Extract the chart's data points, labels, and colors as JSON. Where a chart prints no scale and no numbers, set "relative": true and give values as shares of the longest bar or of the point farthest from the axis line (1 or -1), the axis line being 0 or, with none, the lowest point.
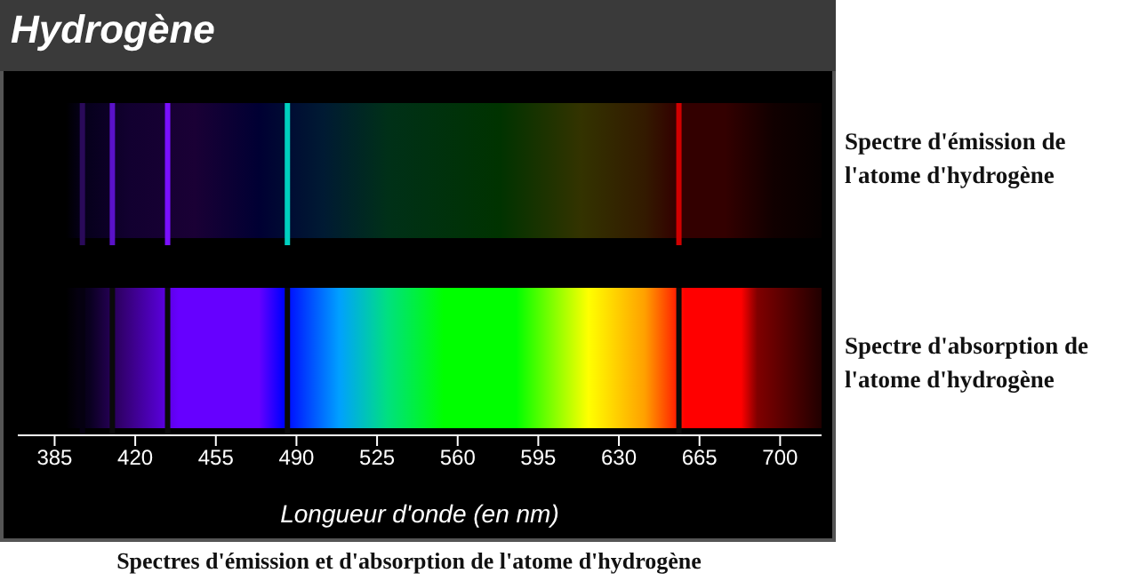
{
  "chart_data": [
    {
      "type": "bar",
      "title": "Hydrogène",
      "ylabel": "Spectre d'émission de l'atome d'hydrogène",
      "relative": true,
      "xlim": [
        369,
        718
      ],
      "xticks": [
        385,
        420,
        455,
        490,
        525,
        560,
        595,
        630,
        665,
        700
      ],
      "tick_labels": false,
      "x": [
        397,
        410,
        434,
        486,
        656
      ],
      "values": [
        1,
        1,
        1,
        1,
        1
      ],
      "colors": [
        "#2a0a5a",
        "#5a12c8",
        "#7a10ff",
        "#00d0c0",
        "#d00000"
      ]
    },
    {
      "type": "bar",
      "ylabel": "Spectre d'absorption de l'atome d'hydrogène",
      "xlabel": "Longueur d'onde (en nm)",
      "relative": true,
      "xlim": [
        369,
        718
      ],
      "xticks": [
        385,
        420,
        455,
        490,
        525,
        560,
        595,
        630,
        665,
        700
      ],
      "x": [
        397,
        410,
        434,
        486,
        656
      ],
      "values": [
        1,
        1,
        1,
        1,
        1
      ],
      "colors": [
        "#050010",
        "#0a0a0a",
        "#0a0a0a",
        "#0a0a0a",
        "#0a0a0a"
      ],
      "annotations": [
        "Spectres d'émission et d'absorption de l'atome d'hydrogène"
      ]
    }
  ]
}
